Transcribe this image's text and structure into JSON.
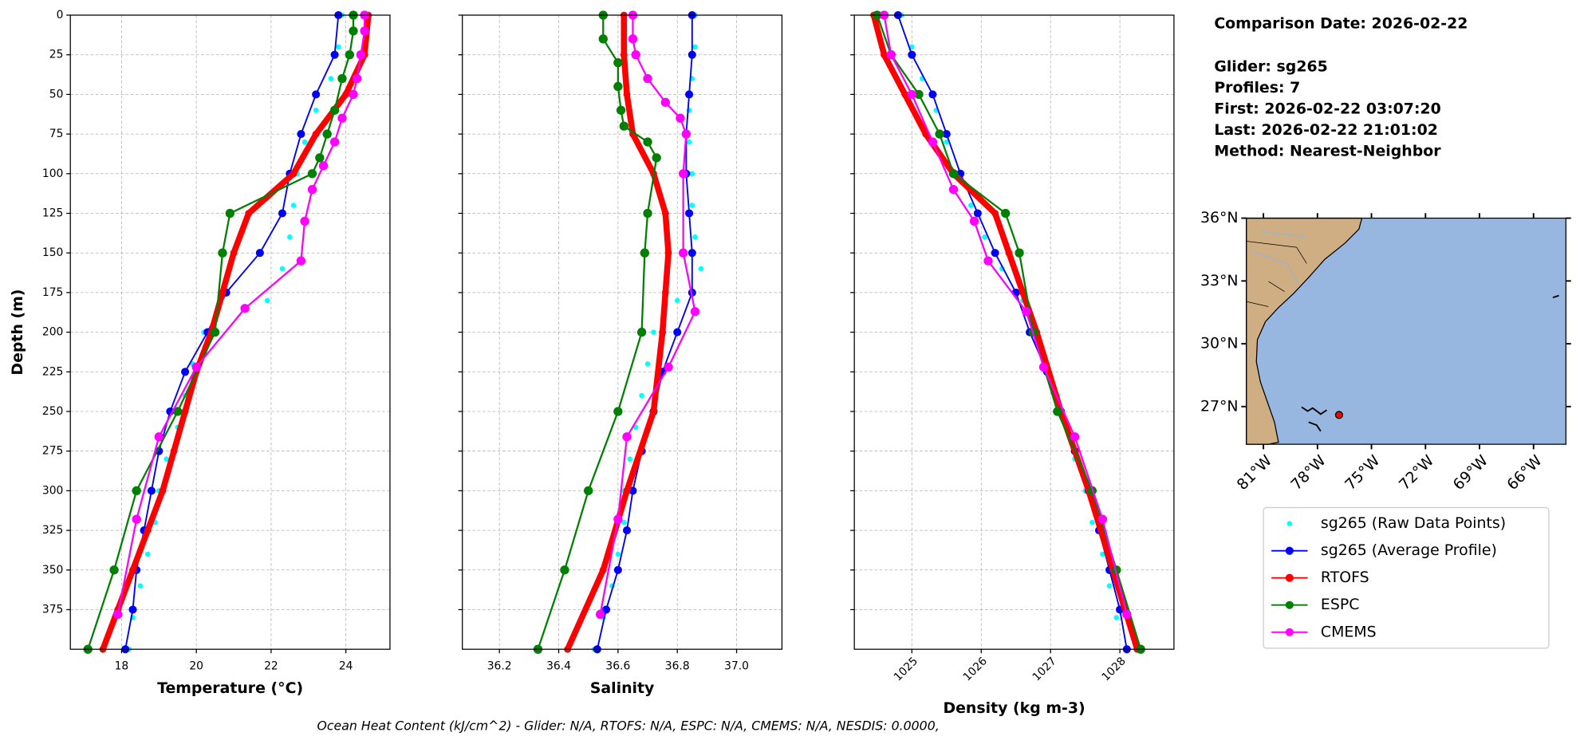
{
  "title": "Comparison Date: 2026-02-22",
  "info": [
    "Glider: sg265",
    "Profiles: 7",
    "First: 2026-02-22 03:07:20",
    "Last: 2026-02-22 21:01:02",
    "Method: Nearest-Neighbor"
  ],
  "footer": "Ocean Heat Content (kJ/cm^2) - Glider: N/A,  RTOFS: N/A,  ESPC: N/A,  CMEMS: N/A,  NESDIS: 0.0000,",
  "chart_data": [
    {
      "type": "line",
      "xlabel": "Temperature (°C)",
      "ylabel": "Depth (m)",
      "xlim": [
        16.63,
        25.18
      ],
      "xticks": [
        18,
        20,
        22,
        24
      ],
      "ylim": [
        400,
        0
      ],
      "yticks": [
        0,
        25,
        50,
        75,
        100,
        125,
        150,
        175,
        200,
        225,
        250,
        275,
        300,
        325,
        350,
        375
      ],
      "grid": true,
      "series": [
        {
          "name": "sg265 (Raw Data Points)",
          "color": "#00ffff",
          "y": [
            0,
            20,
            40,
            60,
            80,
            100,
            120,
            140,
            160,
            180,
            200,
            220,
            240,
            260,
            280,
            300,
            320,
            340,
            360,
            380,
            400
          ],
          "values": [
            23.9,
            23.8,
            23.6,
            23.2,
            22.9,
            22.7,
            22.6,
            22.5,
            22.3,
            21.9,
            20.2,
            19.9,
            19.7,
            19.5,
            19.2,
            19.0,
            18.9,
            18.7,
            18.5,
            18.3,
            18.2
          ]
        },
        {
          "name": "sg265 (Average Profile)",
          "color": "#0000ff",
          "y": [
            0,
            25,
            50,
            75,
            100,
            125,
            150,
            175,
            200,
            225,
            250,
            275,
            300,
            325,
            350,
            375,
            400
          ],
          "values": [
            23.8,
            23.7,
            23.2,
            22.8,
            22.5,
            22.3,
            21.7,
            20.8,
            20.3,
            19.7,
            19.3,
            19.0,
            18.8,
            18.6,
            18.4,
            18.3,
            18.1
          ]
        },
        {
          "name": "RTOFS",
          "color": "#ff0000",
          "y": [
            0,
            25,
            50,
            75,
            100,
            125,
            150,
            175,
            200,
            225,
            250,
            275,
            300,
            325,
            350,
            375,
            400
          ],
          "values": [
            24.6,
            24.5,
            24.0,
            23.2,
            22.6,
            21.4,
            21.0,
            20.7,
            20.4,
            20.0,
            19.7,
            19.4,
            19.1,
            18.7,
            18.3,
            17.9,
            17.5
          ]
        },
        {
          "name": "ESPC",
          "color": "#008000",
          "y": [
            0,
            10,
            25,
            40,
            60,
            75,
            90,
            100,
            125,
            150,
            200,
            250,
            300,
            350,
            400
          ],
          "values": [
            24.2,
            24.2,
            24.1,
            23.9,
            23.7,
            23.5,
            23.3,
            23.1,
            20.9,
            20.7,
            20.5,
            19.5,
            18.4,
            17.8,
            17.1
          ]
        },
        {
          "name": "CMEMS",
          "color": "#ff00ff",
          "y": [
            0,
            10,
            25,
            40,
            50,
            65,
            80,
            95,
            110,
            130,
            155,
            185,
            222,
            266,
            318,
            378
          ],
          "values": [
            24.5,
            24.5,
            24.4,
            24.3,
            24.2,
            23.9,
            23.7,
            23.4,
            23.1,
            22.9,
            22.8,
            21.3,
            20.0,
            19.0,
            18.4,
            17.9
          ]
        }
      ]
    },
    {
      "type": "line",
      "xlabel": "Salinity",
      "xlim": [
        36.075,
        37.153
      ],
      "xticks": [
        36.2,
        36.4,
        36.6,
        36.8,
        {
          "value": 37,
          "label": "37.0"
        }
      ],
      "ylim": [
        400,
        0
      ],
      "yticks": [
        0,
        25,
        50,
        75,
        100,
        125,
        150,
        175,
        200,
        225,
        250,
        275,
        300,
        325,
        350,
        375
      ],
      "grid": true,
      "series": [
        {
          "name": "sg265 (Raw Data Points)",
          "color": "#00ffff",
          "y": [
            0,
            20,
            40,
            60,
            80,
            100,
            120,
            140,
            160,
            180,
            200,
            220,
            240,
            260,
            280,
            300,
            320,
            340,
            360,
            380,
            400
          ],
          "values": [
            36.86,
            36.86,
            36.85,
            36.84,
            36.84,
            36.85,
            36.85,
            36.86,
            36.88,
            36.8,
            36.72,
            36.7,
            36.68,
            36.66,
            36.64,
            36.62,
            36.62,
            36.6,
            36.58,
            36.55,
            36.52
          ]
        },
        {
          "name": "sg265 (Average Profile)",
          "color": "#0000ff",
          "y": [
            0,
            25,
            50,
            75,
            100,
            125,
            150,
            175,
            200,
            225,
            250,
            275,
            300,
            325,
            350,
            375,
            400
          ],
          "values": [
            36.85,
            36.85,
            36.84,
            36.83,
            36.83,
            36.84,
            36.85,
            36.85,
            36.8,
            36.75,
            36.72,
            36.68,
            36.65,
            36.63,
            36.6,
            36.56,
            36.53
          ]
        },
        {
          "name": "RTOFS",
          "color": "#ff0000",
          "y": [
            0,
            25,
            50,
            75,
            100,
            125,
            150,
            175,
            200,
            250,
            300,
            350,
            400
          ],
          "values": [
            36.62,
            36.62,
            36.63,
            36.65,
            36.72,
            36.76,
            36.77,
            36.76,
            36.75,
            36.72,
            36.63,
            36.55,
            36.43
          ]
        },
        {
          "name": "ESPC",
          "color": "#008000",
          "y": [
            0,
            15,
            30,
            45,
            60,
            70,
            80,
            90,
            125,
            150,
            200,
            250,
            300,
            350,
            400
          ],
          "values": [
            36.55,
            36.55,
            36.6,
            36.6,
            36.61,
            36.62,
            36.7,
            36.73,
            36.7,
            36.69,
            36.68,
            36.6,
            36.5,
            36.42,
            36.33
          ]
        },
        {
          "name": "CMEMS",
          "color": "#ff00ff",
          "y": [
            0,
            15,
            25,
            40,
            55,
            65,
            75,
            100,
            150,
            187,
            222,
            266,
            318,
            378
          ],
          "values": [
            36.65,
            36.65,
            36.66,
            36.7,
            36.76,
            36.81,
            36.83,
            36.82,
            36.82,
            36.86,
            36.77,
            36.63,
            36.6,
            36.54
          ]
        }
      ]
    },
    {
      "type": "line",
      "xlabel": "Density (kg m-3)",
      "xlim": [
        1024.17,
        1028.78
      ],
      "xticks": [
        1025,
        1026,
        1027,
        1028
      ],
      "ylim": [
        400,
        0
      ],
      "yticks": [
        0,
        25,
        50,
        75,
        100,
        125,
        150,
        175,
        200,
        225,
        250,
        275,
        300,
        325,
        350,
        375
      ],
      "grid": true,
      "series": [
        {
          "name": "sg265 (Raw Data Points)",
          "color": "#00ffff",
          "y": [
            0,
            20,
            40,
            60,
            80,
            100,
            120,
            140,
            160,
            180,
            200,
            220,
            240,
            260,
            280,
            300,
            320,
            340,
            360,
            380,
            400
          ],
          "values": [
            1024.85,
            1025.0,
            1025.15,
            1025.35,
            1025.5,
            1025.7,
            1025.85,
            1026.05,
            1026.3,
            1026.6,
            1026.8,
            1026.95,
            1027.1,
            1027.25,
            1027.35,
            1027.5,
            1027.6,
            1027.75,
            1027.85,
            1027.95,
            1028.1
          ]
        },
        {
          "name": "sg265 (Average Profile)",
          "color": "#0000ff",
          "y": [
            0,
            25,
            50,
            75,
            100,
            125,
            150,
            175,
            200,
            225,
            250,
            275,
            300,
            325,
            350,
            375,
            400
          ],
          "values": [
            1024.8,
            1025.0,
            1025.3,
            1025.5,
            1025.7,
            1025.95,
            1026.2,
            1026.5,
            1026.7,
            1026.95,
            1027.15,
            1027.35,
            1027.55,
            1027.7,
            1027.85,
            1028.0,
            1028.1
          ]
        },
        {
          "name": "RTOFS",
          "color": "#ff0000",
          "y": [
            0,
            25,
            50,
            75,
            100,
            125,
            150,
            175,
            200,
            250,
            300,
            350,
            400
          ],
          "values": [
            1024.45,
            1024.6,
            1024.9,
            1025.2,
            1025.6,
            1026.2,
            1026.4,
            1026.6,
            1026.8,
            1027.15,
            1027.55,
            1027.9,
            1028.25
          ]
        },
        {
          "name": "ESPC",
          "color": "#008000",
          "y": [
            0,
            25,
            50,
            75,
            100,
            125,
            150,
            200,
            250,
            300,
            350,
            400
          ],
          "values": [
            1024.5,
            1024.7,
            1025.1,
            1025.4,
            1025.6,
            1026.35,
            1026.55,
            1026.75,
            1027.1,
            1027.6,
            1027.95,
            1028.3
          ]
        },
        {
          "name": "CMEMS",
          "color": "#ff00ff",
          "y": [
            0,
            25,
            50,
            80,
            110,
            130,
            155,
            187,
            222,
            266,
            318,
            378
          ],
          "values": [
            1024.6,
            1024.7,
            1025.0,
            1025.3,
            1025.6,
            1025.9,
            1026.1,
            1026.65,
            1026.9,
            1027.35,
            1027.75,
            1028.1
          ]
        }
      ]
    },
    {
      "type": "map",
      "xlim": [
        -81.95,
        -64.2
      ],
      "xticks": [
        {
          "value": -81,
          "label": "81°W"
        },
        {
          "value": -78,
          "label": "78°W"
        },
        {
          "value": -75,
          "label": "75°W"
        },
        {
          "value": -72,
          "label": "72°W"
        },
        {
          "value": -69,
          "label": "69°W"
        },
        {
          "value": -66,
          "label": "66°W"
        }
      ],
      "ylim": [
        25.2,
        36
      ],
      "yticks": [
        {
          "value": 36,
          "label": "36°N"
        },
        {
          "value": 33,
          "label": "33°N"
        },
        {
          "value": 30,
          "label": "30°N"
        },
        {
          "value": 27,
          "label": "27°N"
        }
      ],
      "glider": {
        "lon": -76.8,
        "lat": 26.6,
        "color": "#ff0000"
      }
    }
  ]
}
